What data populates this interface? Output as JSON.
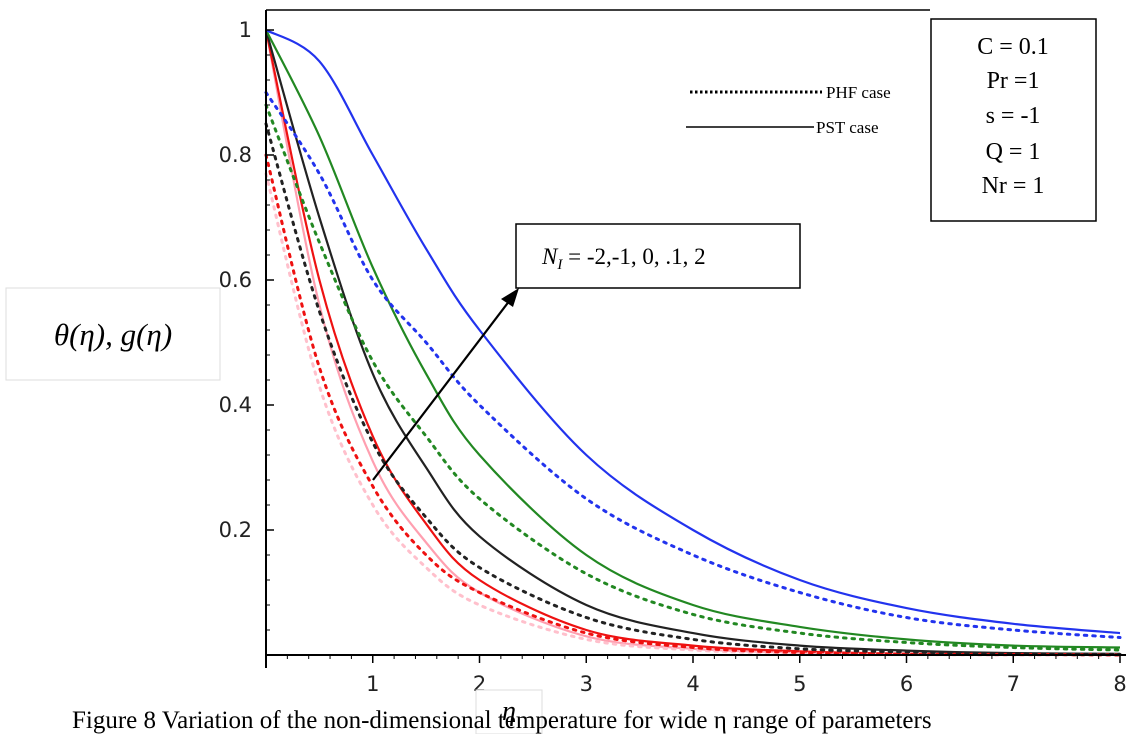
{
  "chart_data": {
    "type": "line",
    "title": "",
    "xlabel": "η",
    "ylabel": "θ(η), g(η)",
    "xlim": [
      0,
      8
    ],
    "ylim": [
      0,
      1
    ],
    "x_ticks": [
      "1",
      "2",
      "3",
      "4",
      "5",
      "6",
      "7",
      "8"
    ],
    "y_ticks": [
      "0.2",
      "0.4",
      "0.6",
      "0.8",
      "1"
    ],
    "legend": {
      "placement": "top-right",
      "items": [
        {
          "label": "PHF case",
          "style": "dotted"
        },
        {
          "label": "PST case",
          "style": "solid"
        }
      ]
    },
    "parameters": [
      "C = 0.1",
      "Pr =1",
      "s = -1",
      "Q = 1",
      "Nr = 1"
    ],
    "annotation": {
      "text": "N",
      "subscript": "I",
      "rest": " = -2,-1, 0, .1, 2"
    },
    "caption": "Figure 8 Variation of the non-dimensional temperature for wide η range of parameters",
    "series": [
      {
        "case": "PST",
        "color": "#ff9fb0",
        "x": [
          0,
          0.5,
          1,
          1.5,
          2,
          3,
          4,
          5,
          6,
          7,
          8
        ],
        "y": [
          1.0,
          0.56,
          0.31,
          0.18,
          0.1,
          0.03,
          0.01,
          0.004,
          0.002,
          0.001,
          0.001
        ]
      },
      {
        "case": "PST",
        "color": "#ee1111",
        "x": [
          0,
          0.5,
          1,
          1.5,
          2,
          3,
          4,
          5,
          6,
          7,
          8
        ],
        "y": [
          1.0,
          0.6,
          0.35,
          0.21,
          0.12,
          0.04,
          0.015,
          0.006,
          0.002,
          0.001,
          0.001
        ]
      },
      {
        "case": "PST",
        "color": "#222222",
        "x": [
          0,
          0.5,
          1,
          1.5,
          2,
          3,
          4,
          5,
          6,
          7,
          8
        ],
        "y": [
          1.0,
          0.7,
          0.45,
          0.3,
          0.19,
          0.08,
          0.035,
          0.015,
          0.007,
          0.003,
          0.002
        ]
      },
      {
        "case": "PST",
        "color": "#228822",
        "x": [
          0,
          0.5,
          1,
          1.5,
          2,
          3,
          4,
          5,
          6,
          7,
          8
        ],
        "y": [
          1.0,
          0.83,
          0.62,
          0.45,
          0.32,
          0.16,
          0.08,
          0.045,
          0.025,
          0.015,
          0.012
        ]
      },
      {
        "case": "PST",
        "color": "#2233ee",
        "x": [
          0,
          0.5,
          1,
          1.5,
          2,
          3,
          4,
          5,
          6,
          7,
          8
        ],
        "y": [
          1.0,
          0.95,
          0.8,
          0.65,
          0.52,
          0.32,
          0.2,
          0.12,
          0.075,
          0.05,
          0.035
        ]
      },
      {
        "case": "PHF",
        "color": "#ffc0cc",
        "x": [
          0,
          0.5,
          1,
          1.5,
          2,
          3,
          4,
          5,
          6,
          7,
          8
        ],
        "y": [
          0.77,
          0.43,
          0.24,
          0.14,
          0.08,
          0.025,
          0.008,
          0.003,
          0.001,
          0.0,
          0.0
        ]
      },
      {
        "case": "PHF",
        "color": "#ee1111",
        "x": [
          0,
          0.5,
          1,
          1.5,
          2,
          3,
          4,
          5,
          6,
          7,
          8
        ],
        "y": [
          0.8,
          0.46,
          0.27,
          0.16,
          0.1,
          0.035,
          0.012,
          0.004,
          0.0015,
          0.001,
          0.0
        ]
      },
      {
        "case": "PHF",
        "color": "#222222",
        "x": [
          0,
          0.5,
          1,
          1.5,
          2,
          3,
          4,
          5,
          6,
          7,
          8
        ],
        "y": [
          0.85,
          0.55,
          0.34,
          0.22,
          0.14,
          0.06,
          0.025,
          0.01,
          0.005,
          0.002,
          0.001
        ]
      },
      {
        "case": "PHF",
        "color": "#228822",
        "x": [
          0,
          0.5,
          1,
          1.5,
          2,
          3,
          4,
          5,
          6,
          7,
          8
        ],
        "y": [
          0.88,
          0.66,
          0.47,
          0.35,
          0.25,
          0.13,
          0.065,
          0.035,
          0.02,
          0.012,
          0.008
        ]
      },
      {
        "case": "PHF",
        "color": "#2233ee",
        "x": [
          0,
          0.5,
          1,
          1.5,
          2,
          3,
          4,
          5,
          6,
          7,
          8
        ],
        "y": [
          0.9,
          0.77,
          0.6,
          0.5,
          0.4,
          0.25,
          0.16,
          0.1,
          0.06,
          0.04,
          0.028
        ]
      }
    ]
  }
}
